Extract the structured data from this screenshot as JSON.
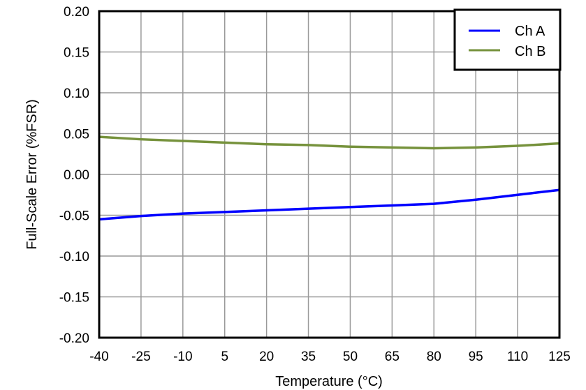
{
  "chart_data": {
    "type": "line",
    "title": "",
    "xlabel": "Temperature (°C)",
    "ylabel": "Full-Scale Error (%FSR)",
    "xlim": [
      -40,
      125
    ],
    "ylim": [
      -0.2,
      0.2
    ],
    "grid": true,
    "legend_position": "top-right",
    "x_ticks": [
      "-40",
      "-25",
      "-10",
      "5",
      "20",
      "35",
      "50",
      "65",
      "80",
      "95",
      "110",
      "125"
    ],
    "y_ticks": [
      "0.20",
      "0.15",
      "0.10",
      "0.05",
      "0.00",
      "-0.05",
      "-0.10",
      "-0.15",
      "-0.20"
    ],
    "x": [
      -40,
      -25,
      -10,
      5,
      20,
      35,
      50,
      65,
      80,
      95,
      110,
      125
    ],
    "series": [
      {
        "name": "Ch A",
        "color": "#0000FF",
        "values": [
          -0.055,
          -0.051,
          -0.048,
          -0.046,
          -0.044,
          -0.042,
          -0.04,
          -0.038,
          -0.036,
          -0.031,
          -0.025,
          -0.019
        ]
      },
      {
        "name": "Ch B",
        "color": "#76923C",
        "values": [
          0.046,
          0.043,
          0.041,
          0.039,
          0.037,
          0.036,
          0.034,
          0.033,
          0.032,
          0.033,
          0.035,
          0.038
        ]
      }
    ]
  }
}
